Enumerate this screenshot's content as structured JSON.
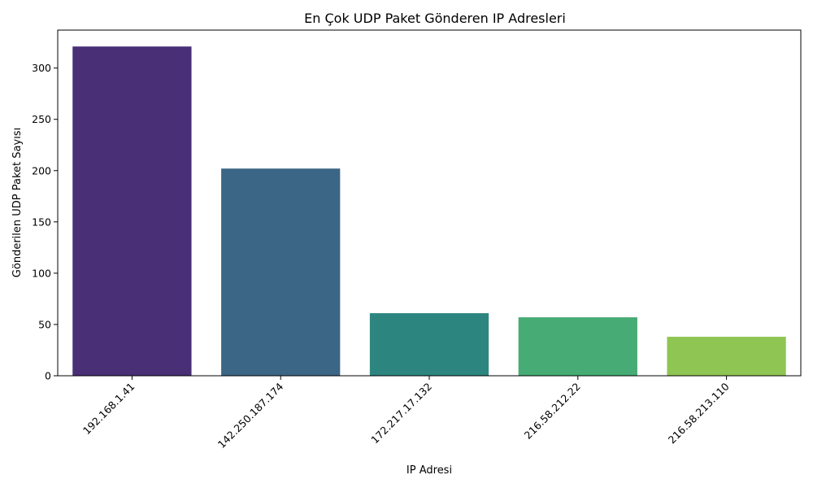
{
  "chart_data": {
    "type": "bar",
    "title": "En Çok UDP Paket Gönderen IP Adresleri",
    "xlabel": "IP Adresi",
    "ylabel": "Gönderilen UDP Paket Sayısı",
    "categories": [
      "192.168.1.41",
      "142.250.187.174",
      "172.217.17.132",
      "216.58.212.22",
      "216.58.213.110"
    ],
    "values": [
      321,
      202,
      61,
      57,
      38
    ],
    "colors": [
      "#482f76",
      "#3c6685",
      "#2d857f",
      "#46ab74",
      "#8ec553"
    ],
    "ylim": [
      0,
      337
    ],
    "yticks": [
      0,
      50,
      100,
      150,
      200,
      250,
      300
    ],
    "grid": false,
    "legend": "none"
  }
}
